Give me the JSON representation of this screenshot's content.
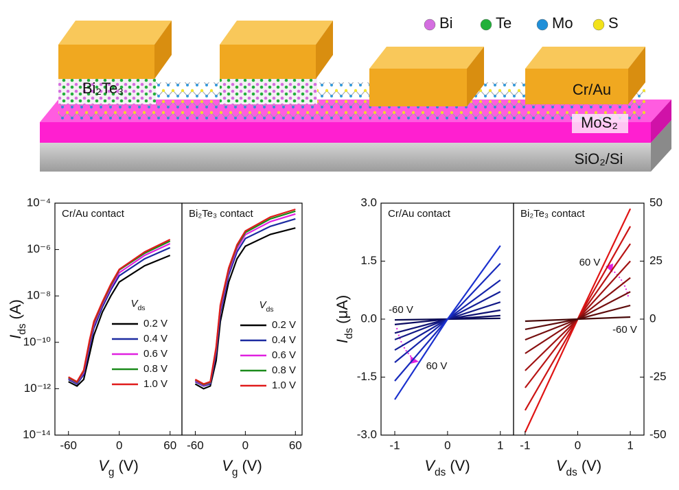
{
  "schematic": {
    "legend": [
      {
        "label": "Bi",
        "color": "#d46ee0"
      },
      {
        "label": "Te",
        "color": "#22b03a"
      },
      {
        "label": "Mo",
        "color": "#1f8fd8"
      },
      {
        "label": "S",
        "color": "#f2e21a"
      }
    ],
    "labels": [
      "Bi₂Te₃",
      "Cr/Au",
      "MoS₂",
      "SiO₂/Si"
    ]
  },
  "chart_data": [
    {
      "type": "line",
      "title": "Cr/Au contact",
      "log_y": true,
      "x": [
        -60,
        -50,
        -42,
        -35,
        -30,
        -20,
        -10,
        0,
        30,
        60
      ],
      "xlim": [
        -76,
        74
      ],
      "xticks": [
        -60,
        0,
        60
      ],
      "ylim": [
        1e-14,
        0.0001
      ],
      "yticks": [
        {
          "value": 0.0001,
          "label": "10⁻⁴"
        },
        {
          "value": 1e-06,
          "label": "10⁻⁶"
        },
        {
          "value": 1e-08,
          "label": "10⁻⁸"
        },
        {
          "value": 1e-10,
          "label": "10⁻¹⁰"
        },
        {
          "value": 1e-12,
          "label": "10⁻¹²"
        },
        {
          "value": 1e-14,
          "label": "10⁻¹⁴"
        }
      ],
      "xlabel": {
        "symbol": "V",
        "subscript": "g",
        "unit": "(V)"
      },
      "ylabel": {
        "symbol": "I",
        "subscript": "ds",
        "unit": "(A)"
      },
      "legend_title": {
        "symbol": "V",
        "subscript": "ds"
      },
      "series": [
        {
          "name": "0.2 V",
          "color": "#000000",
          "values": [
            2e-12,
            1.3e-12,
            2.5e-12,
            3.2e-11,
            2e-10,
            2e-09,
            1e-08,
            4e-08,
            2e-07,
            5.6e-07
          ]
        },
        {
          "name": "0.4 V",
          "color": "#1b2aa0",
          "values": [
            2.5e-12,
            1.6e-12,
            4e-12,
            6.3e-11,
            4e-10,
            3.3e-09,
            1.8e-08,
            7.4e-08,
            4e-07,
            1.2e-06
          ]
        },
        {
          "name": "0.6 V",
          "color": "#e020e0",
          "values": [
            2.8e-12,
            1.8e-12,
            5e-12,
            8.9e-11,
            5.6e-10,
            4.3e-09,
            2.3e-08,
            1e-07,
            5.6e-07,
            1.8e-06
          ]
        },
        {
          "name": "0.8 V",
          "color": "#1a8a1a",
          "values": [
            3e-12,
            1.9e-12,
            5.8e-12,
            1.1e-10,
            6.9e-10,
            5e-09,
            2.8e-08,
            1.3e-07,
            6.9e-07,
            2.3e-06
          ]
        },
        {
          "name": "1.0 V",
          "color": "#e01a1a",
          "values": [
            3.2e-12,
            2e-12,
            6.3e-12,
            1.3e-10,
            7.9e-10,
            5.5e-09,
            3.2e-08,
            1.4e-07,
            7.9e-07,
            2.7e-06
          ]
        }
      ]
    },
    {
      "type": "line",
      "title": "Bi₂Te₃ contact",
      "log_y": true,
      "x": [
        -60,
        -50,
        -42,
        -35,
        -30,
        -20,
        -10,
        0,
        30,
        60
      ],
      "xlim": [
        -76,
        68
      ],
      "xticks": [
        -60,
        0,
        60
      ],
      "ylim": [
        1e-14,
        0.0001
      ],
      "xlabel": {
        "symbol": "V",
        "subscript": "g",
        "unit": "(V)"
      },
      "legend_title": {
        "symbol": "V",
        "subscript": "ds"
      },
      "series": [
        {
          "name": "0.2 V",
          "color": "#000000",
          "values": [
            1.6e-12,
            1e-12,
            1.3e-12,
            1.6e-11,
            7.9e-10,
            4e-08,
            4e-07,
            1.4e-06,
            4.5e-06,
            8.5e-06
          ]
        },
        {
          "name": "0.4 V",
          "color": "#1b2aa0",
          "values": [
            2e-12,
            1.3e-12,
            1.6e-12,
            3.2e-11,
            1.8e-09,
            7.9e-08,
            7.9e-07,
            3e-06,
            1e-05,
            2.1e-05
          ]
        },
        {
          "name": "0.6 V",
          "color": "#e020e0",
          "values": [
            2.2e-12,
            1.4e-12,
            1.8e-12,
            4.5e-11,
            2.6e-09,
            1.1e-07,
            1.1e-06,
            4.4e-06,
            1.6e-05,
            3.4e-05
          ]
        },
        {
          "name": "0.8 V",
          "color": "#1a8a1a",
          "values": [
            2.4e-12,
            1.5e-12,
            1.9e-12,
            5.5e-11,
            3.4e-09,
            1.4e-07,
            1.4e-06,
            5.4e-06,
            2.1e-05,
            4.5e-05
          ]
        },
        {
          "name": "1.0 V",
          "color": "#e01a1a",
          "values": [
            2.5e-12,
            1.6e-12,
            2e-12,
            6.3e-11,
            4e-09,
            1.6e-07,
            1.6e-06,
            6.3e-06,
            2.5e-05,
            5.4e-05
          ]
        }
      ]
    },
    {
      "type": "line",
      "title": "Cr/Au contact",
      "x": [
        -1,
        0,
        1
      ],
      "xlim": [
        -1.26,
        1.25
      ],
      "xticks": [
        -1,
        0,
        1
      ],
      "ylim": [
        -3,
        3
      ],
      "yticks": [
        {
          "value": 3,
          "label": "3.0"
        },
        {
          "value": 1.5,
          "label": "1.5"
        },
        {
          "value": 0,
          "label": "0.0"
        },
        {
          "value": -1.5,
          "label": "-1.5"
        },
        {
          "value": -3,
          "label": "-3.0"
        }
      ],
      "xlabel": {
        "symbol": "V",
        "subscript": "ds",
        "unit": "(V)"
      },
      "ylabel": {
        "symbol": "I",
        "subscript": "ds",
        "unit": "(μA)"
      },
      "annotations": [
        "-60 V",
        "60 V"
      ],
      "series": [
        {
          "color": "#0a0a50",
          "values": [
            -0.02,
            0,
            0.02
          ]
        },
        {
          "color": "#0c0c62",
          "values": [
            -0.14,
            0,
            0.09
          ]
        },
        {
          "color": "#0f1274",
          "values": [
            -0.36,
            0,
            0.23
          ]
        },
        {
          "color": "#111886",
          "values": [
            -0.53,
            0,
            0.44
          ]
        },
        {
          "color": "#131e98",
          "values": [
            -0.8,
            0,
            0.71
          ]
        },
        {
          "color": "#1524aa",
          "values": [
            -1.12,
            0,
            1.01
          ]
        },
        {
          "color": "#172abc",
          "values": [
            -1.6,
            0,
            1.44
          ]
        },
        {
          "color": "#1a30ce",
          "values": [
            -2.08,
            0,
            1.9
          ]
        }
      ]
    },
    {
      "type": "line",
      "title": "Bi₂Te₃ contact",
      "x": [
        -1,
        0,
        1
      ],
      "xlim": [
        -1.22,
        1.26
      ],
      "xticks": [
        -1,
        0,
        1
      ],
      "y2lim": [
        -50,
        50
      ],
      "y2ticks": [
        50,
        25,
        0,
        -25,
        -50
      ],
      "xlabel": {
        "symbol": "V",
        "subscript": "ds",
        "unit": "(V)"
      },
      "annotations": [
        "60 V",
        "-60 V"
      ],
      "series": [
        {
          "axis": "y2",
          "color": "#e01414",
          "values": [
            -48.8,
            0,
            47.6
          ]
        },
        {
          "axis": "y2",
          "color": "#cc1414",
          "values": [
            -39.3,
            0,
            40
          ]
        },
        {
          "axis": "y2",
          "color": "#b81414",
          "values": [
            -29.6,
            0,
            32.5
          ]
        },
        {
          "axis": "y2",
          "color": "#a01212",
          "values": [
            -22.2,
            0,
            25
          ]
        },
        {
          "axis": "y2",
          "color": "#8a1010",
          "values": [
            -14.8,
            0,
            17.8
          ]
        },
        {
          "axis": "y2",
          "color": "#740e0e",
          "values": [
            -8.9,
            0,
            11.8
          ]
        },
        {
          "axis": "y2",
          "color": "#5e0c0c",
          "values": [
            -4.4,
            0,
            5.9
          ]
        },
        {
          "axis": "y2",
          "color": "#480a0a",
          "values": [
            -0.9,
            0,
            0.9
          ]
        }
      ]
    }
  ]
}
